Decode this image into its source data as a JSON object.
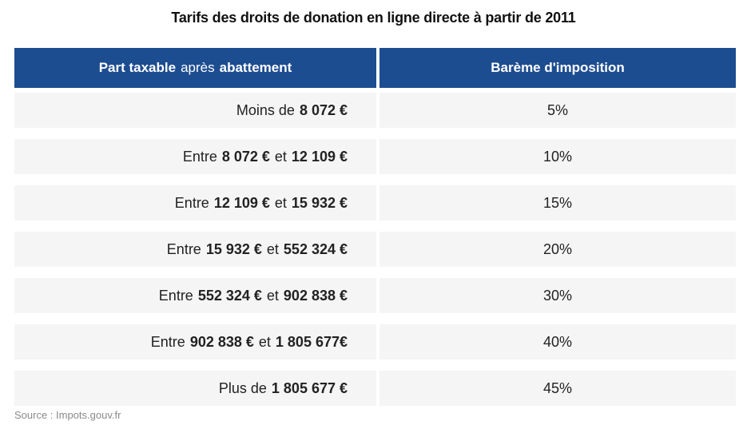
{
  "title": "Tarifs des droits de donation en ligne directe à partir de 2011",
  "header": {
    "col1_part1": "Part taxable",
    "col1_part2": "après",
    "col1_part3": "abattement",
    "col2": "Barème d'imposition"
  },
  "rows": [
    {
      "prefix": "Moins de",
      "value1": "8 072 €",
      "connector": "",
      "value2": "",
      "rate": "5%"
    },
    {
      "prefix": "Entre",
      "value1": "8 072 €",
      "connector": "et",
      "value2": "12 109 €",
      "rate": "10%"
    },
    {
      "prefix": "Entre",
      "value1": "12 109 €",
      "connector": "et",
      "value2": "15 932 €",
      "rate": "15%"
    },
    {
      "prefix": "Entre",
      "value1": "15 932 €",
      "connector": "et",
      "value2": "552 324 €",
      "rate": "20%"
    },
    {
      "prefix": "Entre",
      "value1": "552 324 €",
      "connector": "et",
      "value2": "902 838 €",
      "rate": "30%"
    },
    {
      "prefix": "Entre",
      "value1": "902 838 €",
      "connector": "et",
      "value2": "1 805 677€",
      "rate": "40%"
    },
    {
      "prefix": "Plus de",
      "value1": "1 805 677 €",
      "connector": "",
      "value2": "",
      "rate": "45%"
    }
  ],
  "source": "Source : Impots.gouv.fr"
}
